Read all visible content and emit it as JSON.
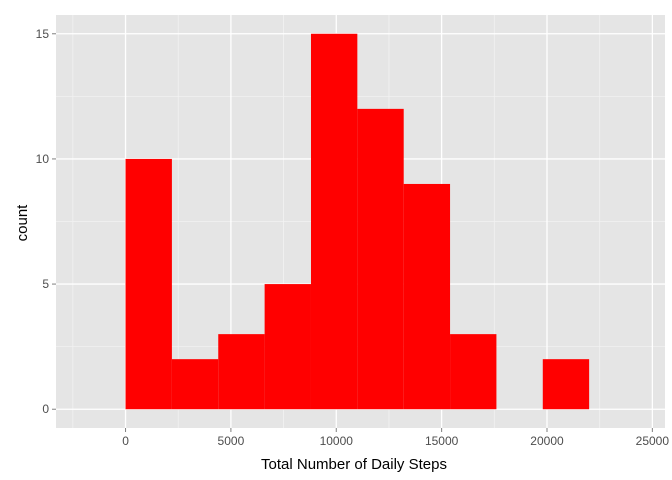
{
  "chart_data": {
    "type": "bar",
    "xlabel": "Total Number of Daily Steps",
    "ylabel": "count",
    "xlim": [
      -3300,
      25600
    ],
    "ylim": [
      -0.75,
      15.75
    ],
    "x_ticks": [
      0,
      5000,
      10000,
      15000,
      20000,
      25000
    ],
    "x_tick_labels": [
      "0",
      "5000",
      "10000",
      "15000",
      "20000",
      "25000"
    ],
    "y_ticks": [
      0,
      5,
      10,
      15
    ],
    "y_tick_labels": [
      "0",
      "5",
      "10",
      "15"
    ],
    "bin_width": 2200,
    "bins": [
      {
        "start": 0,
        "end": 2200,
        "count": 10
      },
      {
        "start": 2200,
        "end": 4400,
        "count": 2
      },
      {
        "start": 4400,
        "end": 6600,
        "count": 3
      },
      {
        "start": 6600,
        "end": 8800,
        "count": 5
      },
      {
        "start": 8800,
        "end": 11000,
        "count": 15
      },
      {
        "start": 11000,
        "end": 13200,
        "count": 12
      },
      {
        "start": 13200,
        "end": 15400,
        "count": 9
      },
      {
        "start": 15400,
        "end": 17600,
        "count": 3
      },
      {
        "start": 17600,
        "end": 19800,
        "count": 0
      },
      {
        "start": 19800,
        "end": 22000,
        "count": 2
      }
    ],
    "colors": {
      "bar": "#ff0000",
      "panel_background": "#e5e5e5",
      "grid_major": "#ffffff",
      "grid_minor": "#f2f2f2"
    },
    "grid": true,
    "legend": "none"
  }
}
